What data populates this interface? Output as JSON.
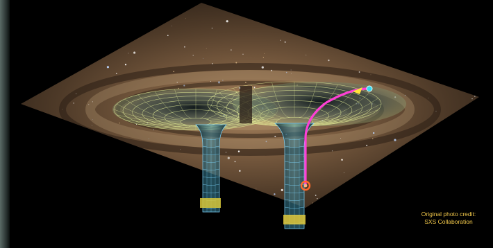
{
  "credit": {
    "line1": "Original photo credit:",
    "line2": "SXS Collaboration"
  },
  "colors": {
    "background": "#000000",
    "galaxy_plane": "#6a5038",
    "grid": "#e8f29a",
    "tube": "#7fd8ff",
    "path": "#ff3fd6",
    "arrow": "#ffe23a",
    "endpoint_marker": "#34d8f0",
    "start_marker": "#ff6a2a",
    "credit_text": "#f2c84a"
  }
}
